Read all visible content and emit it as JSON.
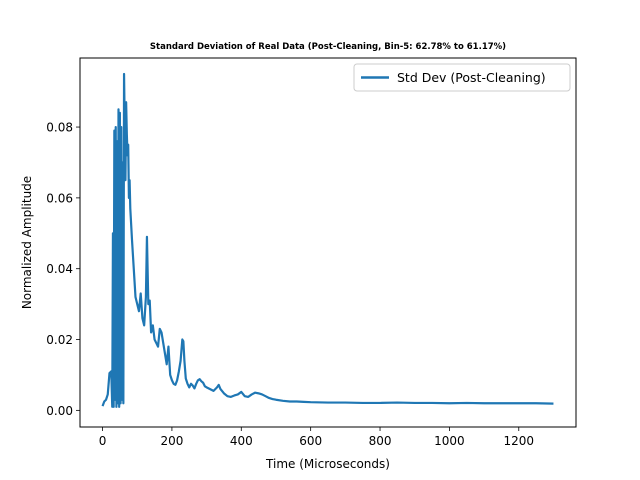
{
  "chart_data": {
    "type": "line",
    "title": "Standard Deviation of Real Data (Post-Cleaning, Bin-5: 62.78% to 61.17%)",
    "xlabel": "Time (Microseconds)",
    "ylabel": "Normalized Amplitude",
    "xlim": [
      -65,
      1365
    ],
    "ylim": [
      -0.0047,
      0.0995
    ],
    "xticks": [
      0,
      200,
      400,
      600,
      800,
      1000,
      1200
    ],
    "xtick_labels": [
      "0",
      "200",
      "400",
      "600",
      "800",
      "1000",
      "1200"
    ],
    "yticks": [
      0.0,
      0.02,
      0.04,
      0.06,
      0.08
    ],
    "ytick_labels": [
      "0.00",
      "0.02",
      "0.04",
      "0.06",
      "0.08"
    ],
    "grid": false,
    "legend_position": "top-right",
    "series": [
      {
        "name": "Std Dev (Post-Cleaning)",
        "color": "#1f77b4",
        "x": [
          0,
          5,
          10,
          15,
          20,
          25,
          28,
          30,
          32,
          34,
          36,
          38,
          40,
          42,
          44,
          46,
          48,
          50,
          52,
          54,
          56,
          58,
          60,
          62,
          64,
          66,
          68,
          70,
          72,
          74,
          76,
          78,
          80,
          85,
          90,
          95,
          100,
          105,
          110,
          115,
          120,
          125,
          128,
          132,
          136,
          140,
          145,
          150,
          155,
          160,
          165,
          170,
          175,
          180,
          185,
          190,
          195,
          200,
          205,
          210,
          215,
          220,
          225,
          230,
          233,
          236,
          240,
          245,
          250,
          255,
          260,
          265,
          270,
          275,
          280,
          285,
          290,
          295,
          300,
          310,
          320,
          330,
          335,
          340,
          350,
          360,
          370,
          380,
          390,
          400,
          410,
          420,
          430,
          440,
          450,
          460,
          470,
          480,
          490,
          500,
          520,
          540,
          560,
          580,
          600,
          650,
          700,
          750,
          800,
          850,
          900,
          950,
          1000,
          1050,
          1100,
          1150,
          1200,
          1250,
          1300
        ],
        "y": [
          0.0012,
          0.0025,
          0.003,
          0.0045,
          0.0105,
          0.011,
          0.001,
          0.05,
          0.001,
          0.079,
          0.003,
          0.08,
          0.001,
          0.076,
          0.002,
          0.085,
          0.001,
          0.084,
          0.002,
          0.08,
          0.003,
          0.07,
          0.002,
          0.095,
          0.08,
          0.065,
          0.087,
          0.078,
          0.072,
          0.075,
          0.06,
          0.065,
          0.057,
          0.048,
          0.04,
          0.032,
          0.03,
          0.028,
          0.033,
          0.026,
          0.024,
          0.032,
          0.049,
          0.03,
          0.031,
          0.022,
          0.024,
          0.02,
          0.019,
          0.018,
          0.023,
          0.022,
          0.019,
          0.016,
          0.013,
          0.018,
          0.01,
          0.0085,
          0.0075,
          0.0072,
          0.0085,
          0.011,
          0.014,
          0.02,
          0.0195,
          0.014,
          0.009,
          0.0075,
          0.0065,
          0.0075,
          0.007,
          0.0062,
          0.0075,
          0.0085,
          0.0088,
          0.0082,
          0.0078,
          0.0068,
          0.0065,
          0.006,
          0.0055,
          0.0065,
          0.0072,
          0.006,
          0.0048,
          0.004,
          0.0038,
          0.0042,
          0.0045,
          0.0052,
          0.004,
          0.0038,
          0.0045,
          0.005,
          0.0048,
          0.0045,
          0.004,
          0.0035,
          0.0032,
          0.003,
          0.0027,
          0.0025,
          0.0025,
          0.0024,
          0.0023,
          0.0022,
          0.0022,
          0.0021,
          0.0021,
          0.0022,
          0.0021,
          0.0021,
          0.002,
          0.0021,
          0.002,
          0.002,
          0.002,
          0.002,
          0.0019
        ]
      }
    ]
  }
}
